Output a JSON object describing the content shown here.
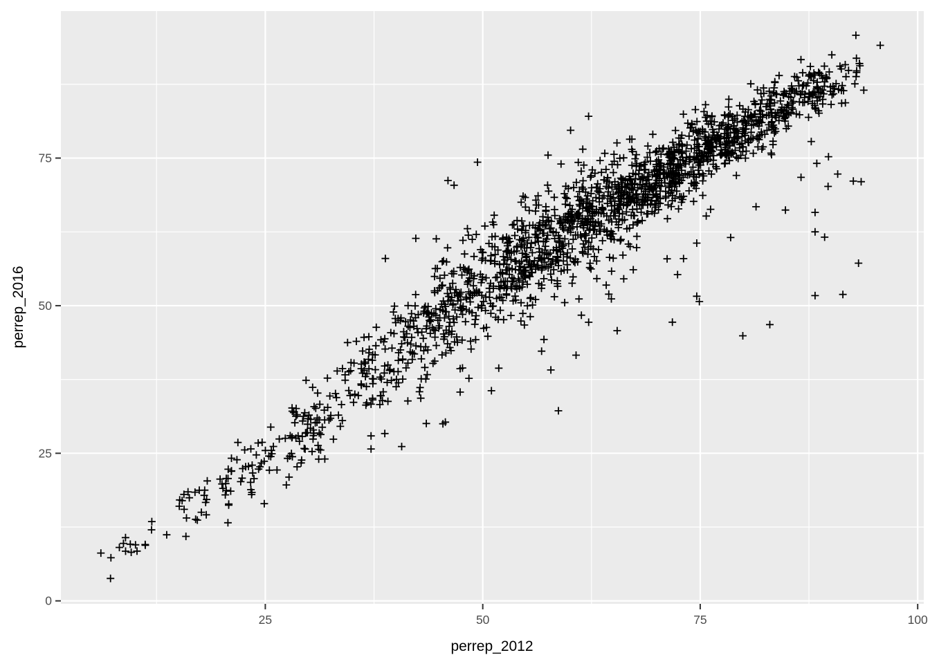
{
  "chart_data": {
    "type": "scatter",
    "title": "",
    "xlabel": "perrep_2012",
    "ylabel": "perrep_2016",
    "x_tick_values": [
      25,
      50,
      75,
      100
    ],
    "x_tick_labels": [
      "25",
      "50",
      "75",
      "100"
    ],
    "y_tick_values": [
      0,
      25,
      50,
      75
    ],
    "y_tick_labels": [
      "0",
      "25",
      "50",
      "75"
    ],
    "x_minor_gridlines": [
      12.5,
      37.5,
      62.5,
      87.5
    ],
    "y_minor_gridlines": [
      12.5,
      37.5,
      62.5,
      87.5
    ],
    "xlim": [
      1.5,
      100.7
    ],
    "ylim": [
      -0.5,
      99.9
    ],
    "grid": "major+minor, white on gray panel",
    "legend": "none",
    "marker": "plus",
    "marker_color": "#000000",
    "theme": "ggplot2-gray",
    "colors": {
      "panel_background": "#EBEBEB",
      "gridline": "#FFFFFF",
      "point": "#000000",
      "tick_text": "#4D4D4D",
      "axis_title_text": "#000000",
      "tick_mark": "#333333",
      "outer_background": "#FFFFFF"
    },
    "relationship_summary": "Strong positive linear correlation, y approximately equal to x, dense core between x=50 and x=90, sparse lower tail from (6,4) to (20,18), scattered outliers below the main cloud for x>70",
    "point_cloud": {
      "seed": 11,
      "ridge": [
        [
          5,
          7
        ],
        [
          12,
          11.5
        ],
        [
          20,
          19
        ],
        [
          28,
          27
        ],
        [
          36,
          37.5
        ],
        [
          44,
          47
        ],
        [
          52,
          55.5
        ],
        [
          60,
          63
        ],
        [
          68,
          70
        ],
        [
          76,
          76.5
        ],
        [
          84,
          83.5
        ],
        [
          92,
          89.5
        ],
        [
          97,
          93
        ]
      ],
      "bands": [
        {
          "x": [
            6,
            13
          ],
          "n": 13,
          "sd": 1.8
        },
        {
          "x": [
            13,
            20
          ],
          "n": 22,
          "sd": 2.2
        },
        {
          "x": [
            20,
            28
          ],
          "n": 55,
          "sd": 2.9
        },
        {
          "x": [
            28,
            36
          ],
          "n": 85,
          "sd": 3.6
        },
        {
          "x": [
            36,
            44
          ],
          "n": 135,
          "sd": 4.4
        },
        {
          "x": [
            44,
            52
          ],
          "n": 200,
          "sd": 4.6
        },
        {
          "x": [
            52,
            60
          ],
          "n": 280,
          "sd": 4.4
        },
        {
          "x": [
            60,
            68
          ],
          "n": 330,
          "sd": 3.8
        },
        {
          "x": [
            68,
            76
          ],
          "n": 330,
          "sd": 3.1
        },
        {
          "x": [
            76,
            84
          ],
          "n": 245,
          "sd": 2.6
        },
        {
          "x": [
            84,
            90
          ],
          "n": 115,
          "sd": 2.3
        },
        {
          "x": [
            90,
            93.5
          ],
          "n": 26,
          "sd": 2.1
        }
      ],
      "below_tail": {
        "frac": 0.028,
        "min_x": 35,
        "shift": [
          6,
          18
        ]
      },
      "up_tail": {
        "frac": 0.012,
        "x_range": [
          38,
          64
        ],
        "shift": [
          5,
          11
        ]
      },
      "y_clamp": [
        3.5,
        96.4
      ]
    },
    "outlier_points": [
      [
        6.1,
        8.1
      ],
      [
        7.2,
        3.8
      ],
      [
        38.8,
        58.0
      ],
      [
        42.3,
        61.4
      ],
      [
        46.0,
        71.2
      ],
      [
        46.7,
        70.4
      ],
      [
        49.4,
        74.3
      ],
      [
        57.5,
        75.5
      ],
      [
        59.0,
        74.0
      ],
      [
        60.1,
        79.7
      ],
      [
        61.5,
        76.5
      ],
      [
        51.0,
        35.6
      ],
      [
        58.7,
        32.2
      ],
      [
        71.8,
        47.2
      ],
      [
        74.6,
        60.6
      ],
      [
        74.6,
        51.6
      ],
      [
        74.9,
        50.7
      ],
      [
        79.9,
        44.9
      ],
      [
        83.0,
        46.8
      ],
      [
        84.8,
        66.2
      ],
      [
        88.2,
        65.8
      ],
      [
        88.2,
        62.5
      ],
      [
        89.3,
        61.6
      ],
      [
        88.2,
        51.7
      ],
      [
        91.4,
        51.9
      ],
      [
        93.2,
        57.2
      ],
      [
        88.4,
        74.1
      ],
      [
        89.7,
        70.2
      ],
      [
        90.8,
        72.3
      ],
      [
        92.6,
        71.1
      ],
      [
        93.5,
        71.0
      ],
      [
        92.9,
        95.8
      ],
      [
        95.7,
        94.1
      ],
      [
        93.8,
        86.5
      ]
    ]
  }
}
